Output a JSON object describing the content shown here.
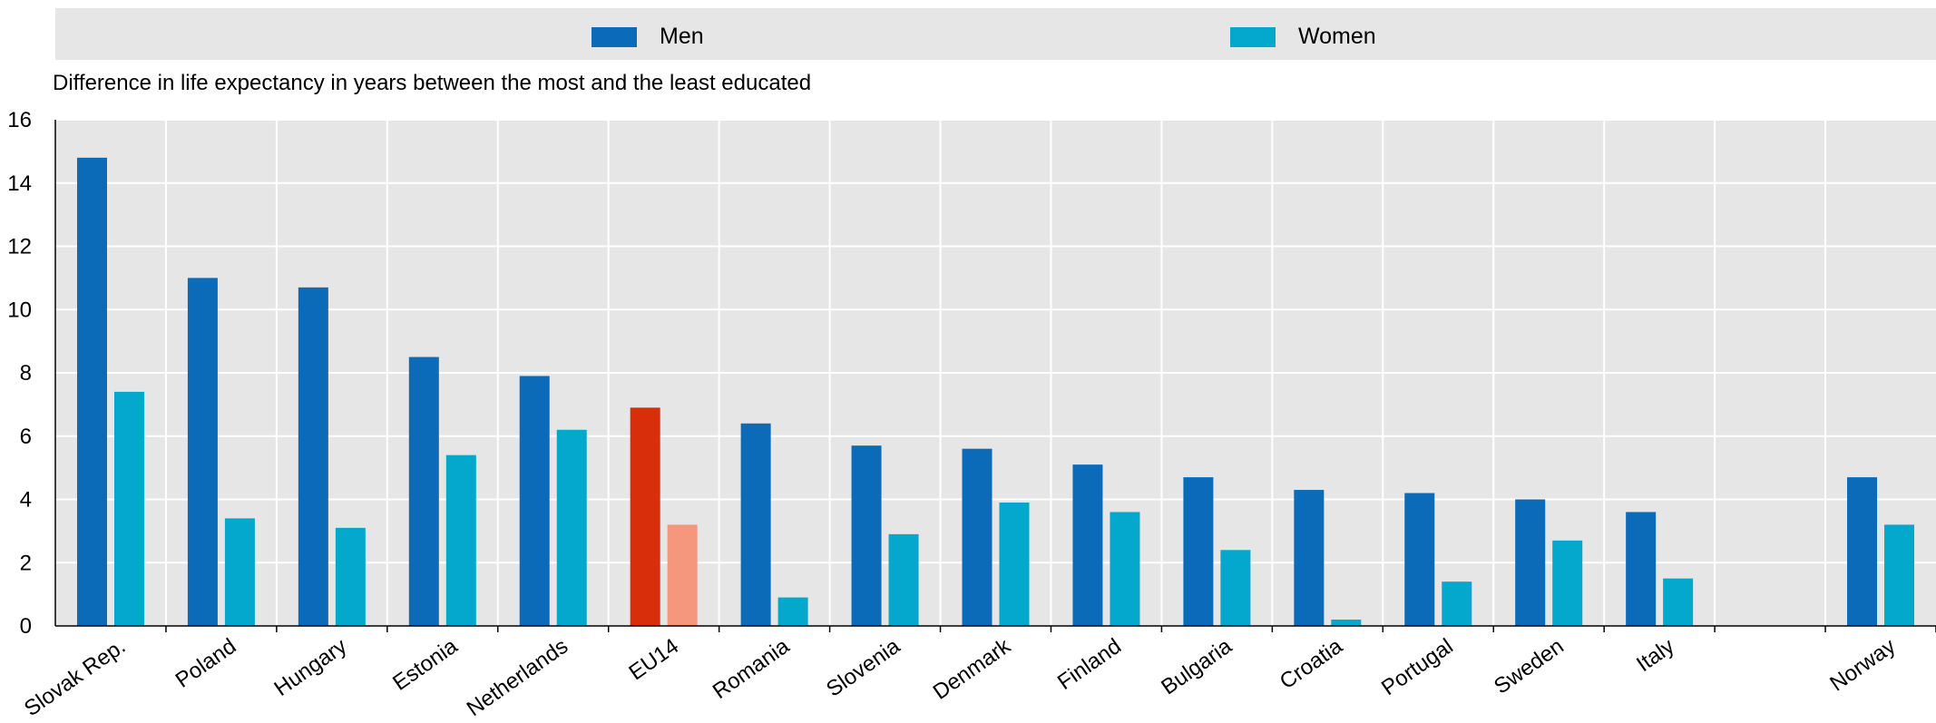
{
  "chart_data": {
    "type": "bar",
    "ylabel": "Difference in life expectancy in years between the most and the least educated",
    "ylim": [
      0,
      16
    ],
    "yticks": [
      0,
      2,
      4,
      6,
      8,
      10,
      12,
      14,
      16
    ],
    "grid": true,
    "legend_position": "top",
    "categories": [
      "Slovak Rep.",
      "Poland",
      "Hungary",
      "Estonia",
      "Netherlands",
      "EU14",
      "Romania",
      "Slovenia",
      "Denmark",
      "Finland",
      "Bulgaria",
      "Croatia",
      "Portugal",
      "Sweden",
      "Italy",
      "",
      "Norway"
    ],
    "series": [
      {
        "name": "Men",
        "color": "#0b6bb8",
        "highlight_color": "#d82e0c",
        "values": [
          14.8,
          11.0,
          10.7,
          8.5,
          7.9,
          6.9,
          6.4,
          5.7,
          5.6,
          5.1,
          4.7,
          4.3,
          4.2,
          4.0,
          3.6,
          null,
          4.7
        ]
      },
      {
        "name": "Women",
        "color": "#04a8cc",
        "highlight_color": "#f5977c",
        "values": [
          7.4,
          3.4,
          3.1,
          5.4,
          6.2,
          3.2,
          0.9,
          2.9,
          3.9,
          3.6,
          2.4,
          0.2,
          1.4,
          2.7,
          1.5,
          null,
          3.2
        ]
      }
    ],
    "highlight_category": "EU14"
  }
}
